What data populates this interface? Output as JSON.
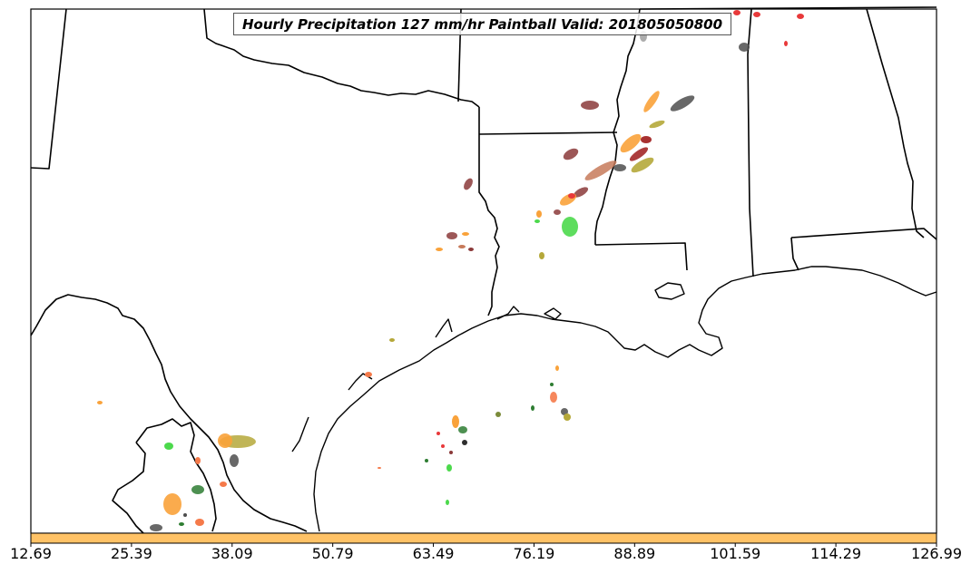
{
  "title": "Hourly Precipitation 127 mm/hr Paintball Valid: 201805050800",
  "colorbar": {
    "fill_color": "#ffc266",
    "tick_labels": [
      "12.69",
      "25.39",
      "38.09",
      "50.79",
      "63.49",
      "76.19",
      "88.89",
      "101.59",
      "114.29",
      "126.99"
    ]
  },
  "colors": {
    "red": "#e8393a",
    "orange": "#f9a23a",
    "salmon": "#f57a4a",
    "maroon": "#8b3a3a",
    "dark_red": "#9e1b1b",
    "olive": "#b5a83a",
    "green": "#4cd94c",
    "dark_green": "#2e7d32",
    "gray": "#4d4d4d"
  }
}
